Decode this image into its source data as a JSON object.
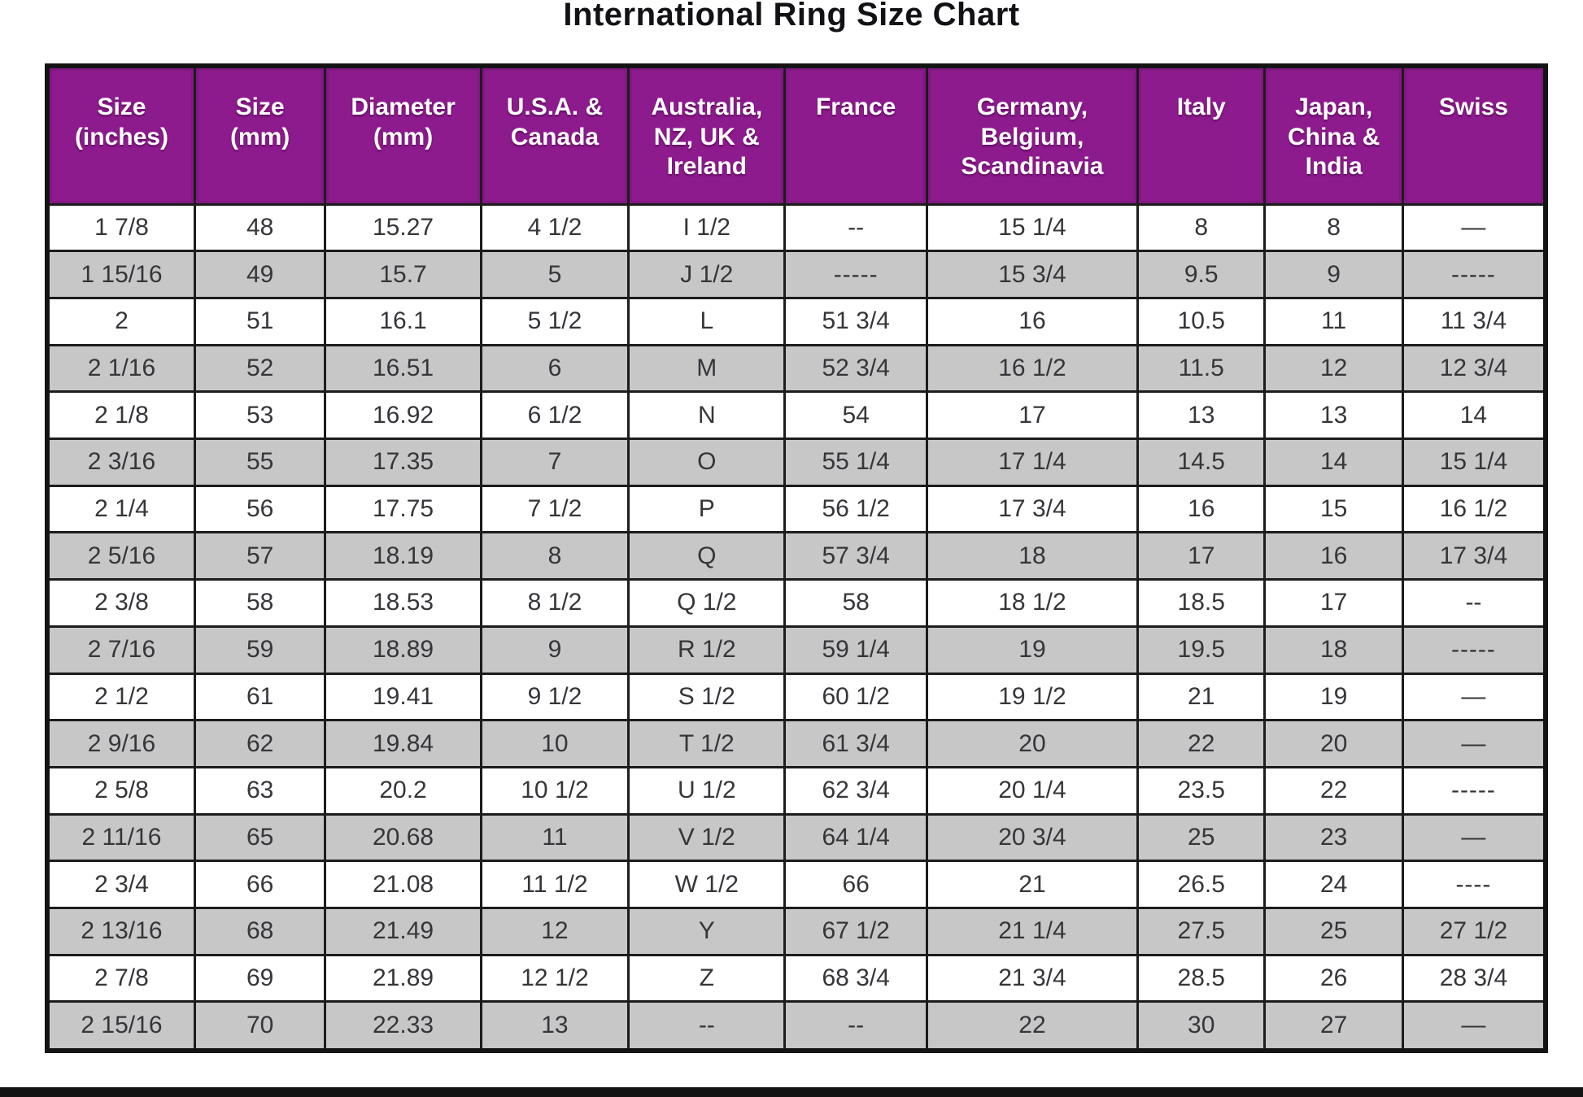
{
  "title": "International Ring Size Chart",
  "colors": {
    "header_bg": "#8d1b8d",
    "header_text": "#ffffff",
    "row_bg": "#ffffff",
    "row_alt_bg": "#c7c7c7",
    "grid_line": "#1c1c1c",
    "title_text": "#121216",
    "bottom_bar": "#131313"
  },
  "chart_data": {
    "type": "table",
    "title": "International Ring Size Chart",
    "legend_position": "none",
    "grid": true,
    "columns": [
      "Size (inches)",
      "Size (mm)",
      "Diameter (mm)",
      "U.S.A. & Canada",
      "Australia, NZ, UK & Ireland",
      "France",
      "Germany, Belgium, Scandinavia",
      "Italy",
      "Japan, China & India",
      "Swiss"
    ],
    "col_widths_pct": [
      9.85,
      8.71,
      10.39,
      9.85,
      10.44,
      9.47,
      14.07,
      8.49,
      9.2,
      9.53
    ],
    "rows": [
      [
        "1 7/8",
        "48",
        "15.27",
        "4 1/2",
        "I 1/2",
        "--",
        "15 1/4",
        "8",
        "8",
        "—"
      ],
      [
        "1 15/16",
        "49",
        "15.7",
        "5",
        "J 1/2",
        "-----",
        "15 3/4",
        "9.5",
        "9",
        "-----"
      ],
      [
        "2",
        "51",
        "16.1",
        "5 1/2",
        "L",
        "51 3/4",
        "16",
        "10.5",
        "11",
        "11 3/4"
      ],
      [
        "2 1/16",
        "52",
        "16.51",
        "6",
        "M",
        "52 3/4",
        "16 1/2",
        "11.5",
        "12",
        "12 3/4"
      ],
      [
        "2 1/8",
        "53",
        "16.92",
        "6 1/2",
        "N",
        "54",
        "17",
        "13",
        "13",
        "14"
      ],
      [
        "2 3/16",
        "55",
        "17.35",
        "7",
        "O",
        "55 1/4",
        "17 1/4",
        "14.5",
        "14",
        "15 1/4"
      ],
      [
        "2 1/4",
        "56",
        "17.75",
        "7 1/2",
        "P",
        "56 1/2",
        "17 3/4",
        "16",
        "15",
        "16 1/2"
      ],
      [
        "2 5/16",
        "57",
        "18.19",
        "8",
        "Q",
        "57 3/4",
        "18",
        "17",
        "16",
        "17 3/4"
      ],
      [
        "2 3/8",
        "58",
        "18.53",
        "8 1/2",
        "Q 1/2",
        "58",
        "18 1/2",
        "18.5",
        "17",
        "--"
      ],
      [
        "2 7/16",
        "59",
        "18.89",
        "9",
        "R 1/2",
        "59 1/4",
        "19",
        "19.5",
        "18",
        "-----"
      ],
      [
        "2 1/2",
        "61",
        "19.41",
        "9 1/2",
        "S 1/2",
        "60 1/2",
        "19 1/2",
        "21",
        "19",
        "—"
      ],
      [
        "2 9/16",
        "62",
        "19.84",
        "10",
        "T 1/2",
        "61 3/4",
        "20",
        "22",
        "20",
        "—"
      ],
      [
        "2 5/8",
        "63",
        "20.2",
        "10 1/2",
        "U 1/2",
        "62 3/4",
        "20 1/4",
        "23.5",
        "22",
        "-----"
      ],
      [
        "2 11/16",
        "65",
        "20.68",
        "11",
        "V 1/2",
        "64 1/4",
        "20 3/4",
        "25",
        "23",
        "—"
      ],
      [
        "2 3/4",
        "66",
        "21.08",
        "11 1/2",
        "W 1/2",
        "66",
        "21",
        "26.5",
        "24",
        "----"
      ],
      [
        "2 13/16",
        "68",
        "21.49",
        "12",
        "Y",
        "67 1/2",
        "21 1/4",
        "27.5",
        "25",
        "27 1/2"
      ],
      [
        "2 7/8",
        "69",
        "21.89",
        "12 1/2",
        "Z",
        "68 3/4",
        "21 3/4",
        "28.5",
        "26",
        "28 3/4"
      ],
      [
        "2 15/16",
        "70",
        "22.33",
        "13",
        "--",
        "--",
        "22",
        "30",
        "27",
        "—"
      ]
    ]
  }
}
